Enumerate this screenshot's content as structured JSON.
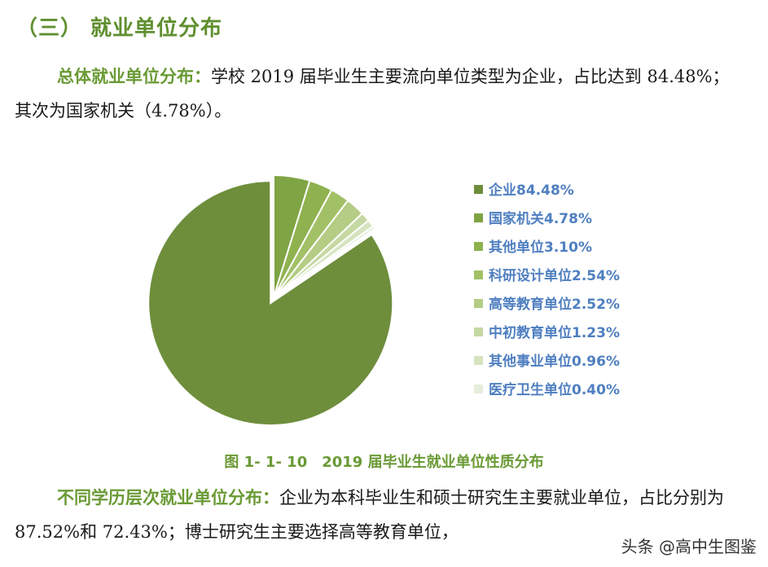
{
  "heading": "（三）  就业单位分布",
  "para1": {
    "lead": "总体就业单位分布：",
    "text": "学校 2019 届毕业生主要流向单位类型为企业，占比达到 84.48%；其次为国家机关（4.78%）。"
  },
  "caption": "图 1- 1- 10　2019 届毕业生就业单位性质分布",
  "para2": {
    "lead": "不同学历层次就业单位分布：",
    "text": "企业为本科毕业生和硕士研究生主要就业单位，占比分别为 87.52%和 72.43%；博士研究生主要选择高等教育单位，"
  },
  "watermark": "头条 @高中生图鉴",
  "chart_data": {
    "type": "pie",
    "title": "",
    "legend_position": "right",
    "exploded_slice": "企业",
    "slices": [
      {
        "label": "企业84.48%",
        "name": "企业",
        "value": 84.48,
        "color": "#6e8e3c"
      },
      {
        "label": "国家机关4.78%",
        "name": "国家机关",
        "value": 4.78,
        "color": "#7ea443"
      },
      {
        "label": "其他单位3.10%",
        "name": "其他单位",
        "value": 3.1,
        "color": "#8fb24f"
      },
      {
        "label": "科研设计单位2.54%",
        "name": "科研设计单位",
        "value": 2.54,
        "color": "#a2c066"
      },
      {
        "label": "高等教育单位2.52%",
        "name": "高等教育单位",
        "value": 2.52,
        "color": "#b4cc84"
      },
      {
        "label": "中初教育单位1.23%",
        "name": "中初教育单位",
        "value": 1.23,
        "color": "#c6d8a2"
      },
      {
        "label": "其他事业单位0.96%",
        "name": "其他事业单位",
        "value": 0.96,
        "color": "#d6e3bf"
      },
      {
        "label": "医疗卫生单位0.40%",
        "name": "医疗卫生单位",
        "value": 0.4,
        "color": "#e5eddb"
      }
    ]
  }
}
